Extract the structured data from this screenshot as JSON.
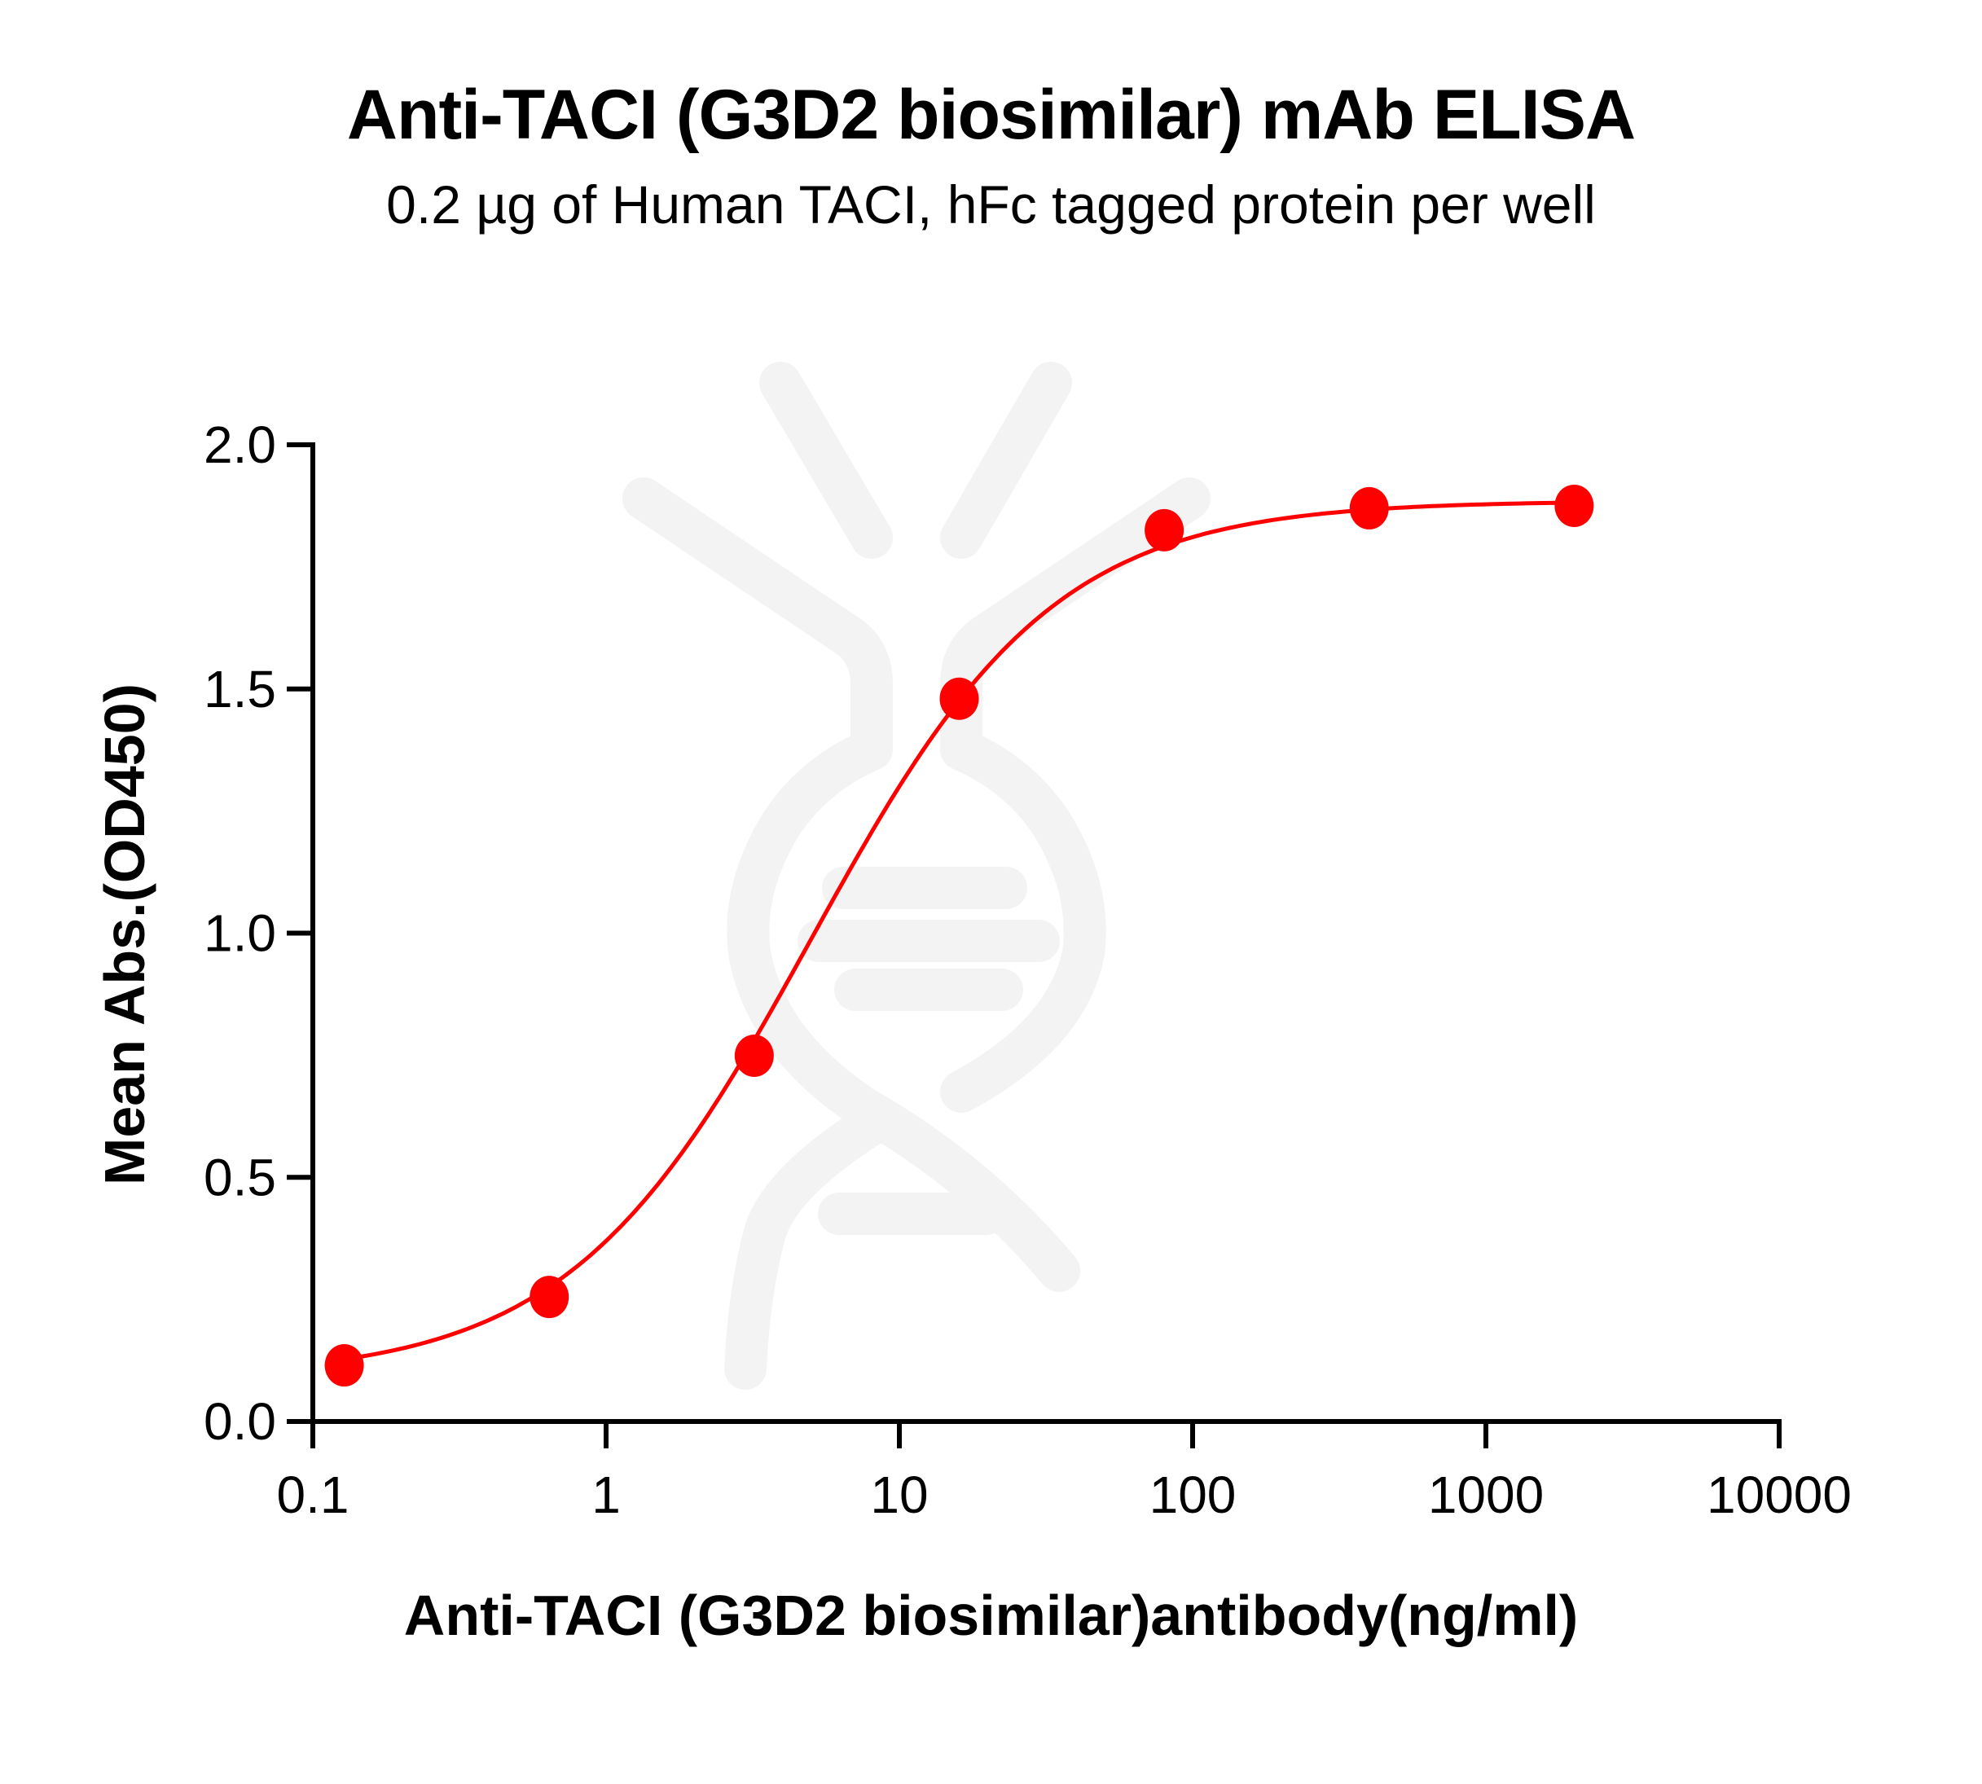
{
  "header": {
    "title": "Anti-TACI (G3D2 biosimilar) mAb ELISA",
    "subtitle": "0.2 µg of Human TACI, hFc tagged protein per well"
  },
  "axes": {
    "xlabel": "Anti-TACI (G3D2 biosimilar)antibody(ng/ml)",
    "ylabel": "Mean Abs.(OD450)"
  },
  "colors": {
    "series": "#ff0000",
    "watermark": "#f3f3f3",
    "axis": "#000000"
  },
  "watermark": {
    "icon": "dna-antibody-logo-icon"
  },
  "chart_data": {
    "type": "scatter",
    "title": "Anti-TACI (G3D2 biosimilar) mAb ELISA",
    "subtitle": "0.2 µg of Human TACI, hFc tagged protein per well",
    "xlabel": "Anti-TACI (G3D2 biosimilar)antibody(ng/ml)",
    "ylabel": "Mean Abs.(OD450)",
    "xscale": "log",
    "xlim": [
      0.1,
      10000
    ],
    "ylim": [
      0,
      2.0
    ],
    "xticks": [
      0.1,
      1,
      10,
      100,
      1000,
      10000
    ],
    "xtick_labels": [
      "0.1",
      "1",
      "10",
      "100",
      "1000",
      "10000"
    ],
    "yticks": [
      0.0,
      0.5,
      1.0,
      1.5,
      2.0
    ],
    "ytick_labels": [
      "0.0",
      "0.5",
      "1.0",
      "1.5",
      "2.0"
    ],
    "grid": false,
    "legend": null,
    "fit": "4-parameter logistic curve (smooth red line through points)",
    "series": [
      {
        "name": "Anti-TACI (G3D2 biosimilar) mAb",
        "color": "#ff0000",
        "marker": "filled-circle",
        "x": [
          0.128,
          0.64,
          3.2,
          16,
          80,
          400,
          2000
        ],
        "y": [
          0.115,
          0.255,
          0.749,
          1.48,
          1.825,
          1.87,
          1.875
        ]
      }
    ],
    "fit_params": {
      "bottom": 0.09,
      "top": 1.885,
      "ec50": 5.0,
      "hill": 1.05
    }
  }
}
